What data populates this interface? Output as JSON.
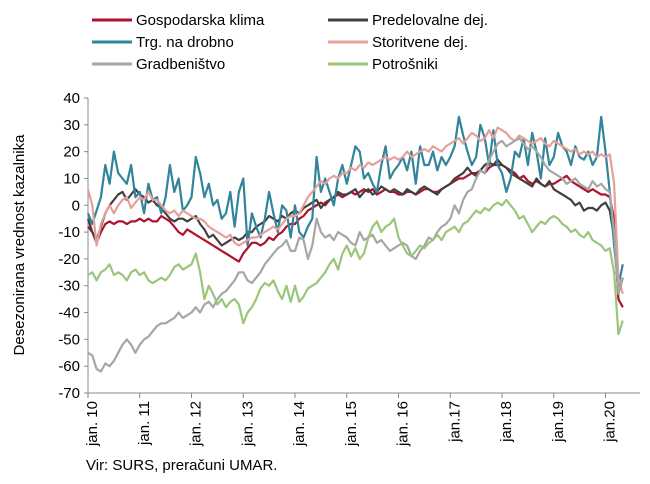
{
  "chart_data": {
    "type": "line",
    "y_label": "Desezonirana vrednost kazalnika",
    "source": "Vir: SURS, preračuni UMAR.",
    "categories": [
      "jan. 10",
      null,
      null,
      null,
      null,
      null,
      null,
      null,
      null,
      null,
      null,
      null,
      "jan. 11",
      null,
      null,
      null,
      null,
      null,
      null,
      null,
      null,
      null,
      null,
      null,
      "jan. 12",
      null,
      null,
      null,
      null,
      null,
      null,
      null,
      null,
      null,
      null,
      null,
      "jan. 13",
      null,
      null,
      null,
      null,
      null,
      null,
      null,
      null,
      null,
      null,
      null,
      "jan. 14",
      null,
      null,
      null,
      null,
      null,
      null,
      null,
      null,
      null,
      null,
      null,
      "jan. 15",
      null,
      null,
      null,
      null,
      null,
      null,
      null,
      null,
      null,
      null,
      null,
      "jan. 16",
      null,
      null,
      null,
      null,
      null,
      null,
      null,
      null,
      null,
      null,
      null,
      "jan.17",
      null,
      null,
      null,
      null,
      null,
      null,
      null,
      null,
      null,
      null,
      null,
      "jan.18",
      null,
      null,
      null,
      null,
      null,
      null,
      null,
      null,
      null,
      null,
      null,
      "jan.19",
      null,
      null,
      null,
      null,
      null,
      null,
      null,
      null,
      null,
      null,
      null,
      "jan.20",
      null,
      null,
      null,
      null
    ],
    "ylim": [
      -70,
      40
    ],
    "yticks": [
      -70,
      -60,
      -50,
      -40,
      -30,
      -20,
      -10,
      0,
      10,
      20,
      30,
      40
    ],
    "series": [
      {
        "name": "Gospodarska klima",
        "color": "#b0112b",
        "values": [
          -8,
          -10,
          -14,
          -10,
          -7,
          -6,
          -7,
          -6,
          -6,
          -7,
          -6,
          -6,
          -5,
          -6,
          -5,
          -6,
          -6,
          -4,
          -5,
          -6,
          -8,
          -10,
          -11,
          -9,
          -10,
          -11,
          -12,
          -13,
          -14,
          -15,
          -16,
          -17,
          -18,
          -19,
          -20,
          -21,
          -18,
          -16,
          -14,
          -14,
          -15,
          -14,
          -12,
          -13,
          -11,
          -10,
          -8,
          -7,
          -7,
          -5,
          -4,
          -2,
          -1,
          0,
          1,
          0,
          2,
          3,
          4,
          3,
          4,
          5,
          4,
          5,
          6,
          5,
          6,
          4,
          5,
          6,
          5,
          5,
          4,
          4,
          5,
          5,
          4,
          5,
          6,
          6,
          5,
          5,
          6,
          7,
          8,
          9,
          10,
          10,
          11,
          12,
          12,
          13,
          12,
          14,
          15,
          15,
          15,
          14,
          13,
          12,
          10,
          11,
          9,
          8,
          9,
          8,
          7,
          8,
          8,
          9,
          10,
          11,
          9,
          8,
          7,
          6,
          5,
          6,
          5,
          4,
          4,
          3,
          -5,
          -35,
          -38
        ]
      },
      {
        "name": "Predelovalne dej.",
        "color": "#404040",
        "values": [
          -5,
          -10,
          -13,
          -8,
          -3,
          0,
          2,
          4,
          5,
          2,
          4,
          6,
          4,
          3,
          1,
          2,
          0,
          -1,
          -3,
          -5,
          -6,
          -5,
          -5,
          -6,
          -5,
          -4,
          -7,
          -9,
          -12,
          -11,
          -13,
          -15,
          -14,
          -13,
          -12,
          -13,
          -12,
          -10,
          -10,
          -8,
          -7,
          -6,
          -4,
          -5,
          -6,
          -4,
          -5,
          -3,
          -2,
          -3,
          -1,
          0,
          1,
          2,
          -1,
          1,
          2,
          3,
          5,
          4,
          4,
          5,
          6,
          3,
          5,
          6,
          4,
          5,
          7,
          6,
          5,
          6,
          5,
          4,
          6,
          5,
          4,
          6,
          7,
          6,
          5,
          4,
          6,
          7,
          8,
          10,
          11,
          12,
          14,
          12,
          11,
          13,
          15,
          16,
          15,
          17,
          15,
          14,
          12,
          11,
          10,
          9,
          8,
          7,
          10,
          8,
          7,
          9,
          6,
          5,
          4,
          3,
          2,
          0,
          1,
          -2,
          -1,
          -1,
          -2,
          0,
          1,
          -2,
          -12,
          -33,
          -27
        ]
      },
      {
        "name": "Trg. na drobno",
        "color": "#31849b",
        "values": [
          -3,
          -7,
          -2,
          3,
          15,
          8,
          20,
          12,
          10,
          8,
          15,
          3,
          5,
          -3,
          8,
          2,
          3,
          -3,
          3,
          15,
          5,
          10,
          -2,
          0,
          3,
          18,
          12,
          3,
          8,
          0,
          2,
          -5,
          -3,
          5,
          -8,
          5,
          10,
          -15,
          -3,
          -8,
          -12,
          -5,
          5,
          -3,
          -10,
          0,
          -2,
          -12,
          0,
          -10,
          -12,
          -8,
          -5,
          18,
          5,
          10,
          5,
          0,
          10,
          15,
          8,
          15,
          22,
          20,
          10,
          12,
          8,
          5,
          15,
          22,
          10,
          13,
          15,
          18,
          13,
          20,
          8,
          22,
          15,
          15,
          20,
          13,
          18,
          15,
          18,
          22,
          33,
          26,
          20,
          15,
          18,
          30,
          25,
          15,
          28,
          15,
          12,
          5,
          10,
          20,
          18,
          25,
          15,
          27,
          20,
          10,
          25,
          15,
          18,
          27,
          22,
          20,
          15,
          22,
          18,
          17,
          20,
          15,
          18,
          33,
          20,
          5,
          -15,
          -30,
          -22
        ]
      },
      {
        "name": "Storitvene dej.",
        "color": "#e6a09a",
        "values": [
          6,
          0,
          -15,
          -7,
          -3,
          0,
          -3,
          0,
          2,
          3,
          -1,
          1,
          3,
          2,
          5,
          2,
          2,
          0,
          -2,
          -3,
          -2,
          -4,
          -2,
          -3,
          -4,
          -5,
          -5,
          -6,
          -8,
          -9,
          -10,
          -11,
          -12,
          -11,
          -14,
          -15,
          -14,
          -13,
          -12,
          -12,
          -11,
          -10,
          -9,
          -8,
          -9,
          -7,
          -5,
          -4,
          -4,
          -3,
          0,
          3,
          5,
          7,
          9,
          8,
          10,
          11,
          10,
          12,
          12,
          14,
          13,
          15,
          14,
          16,
          15,
          16,
          17,
          18,
          17,
          18,
          17,
          18,
          20,
          18,
          19,
          20,
          21,
          20,
          22,
          21,
          20,
          22,
          23,
          24,
          25,
          23,
          25,
          27,
          26,
          24,
          25,
          28,
          25,
          29,
          28,
          27,
          25,
          24,
          26,
          25,
          24,
          23,
          24,
          25,
          23,
          22,
          24,
          23,
          22,
          21,
          20,
          21,
          19,
          20,
          19,
          20,
          18,
          19,
          18,
          19,
          8,
          -27,
          -33
        ]
      },
      {
        "name": "Gradbeništvo",
        "color": "#a6a6a6",
        "values": [
          -55,
          -56,
          -61,
          -62,
          -59,
          -60,
          -58,
          -55,
          -52,
          -50,
          -52,
          -55,
          -52,
          -50,
          -49,
          -47,
          -45,
          -44,
          -44,
          -43,
          -42,
          -40,
          -42,
          -41,
          -40,
          -38,
          -40,
          -37,
          -36,
          -38,
          -35,
          -33,
          -32,
          -30,
          -28,
          -25,
          -25,
          -28,
          -29,
          -27,
          -25,
          -22,
          -20,
          -18,
          -16,
          -15,
          -13,
          -17,
          -17,
          -12,
          -13,
          -20,
          -15,
          -5,
          -10,
          -12,
          -11,
          -13,
          -10,
          -11,
          -12,
          -14,
          -15,
          -10,
          -13,
          -12,
          -11,
          -14,
          -13,
          -15,
          -17,
          -16,
          -15,
          -14,
          -15,
          -19,
          -20,
          -17,
          -15,
          -12,
          -13,
          -10,
          -8,
          -7,
          -5,
          0,
          -3,
          2,
          5,
          6,
          10,
          13,
          12,
          17,
          20,
          23,
          24,
          22,
          23,
          24,
          25,
          23,
          21,
          22,
          20,
          18,
          15,
          13,
          12,
          11,
          10,
          8,
          9,
          10,
          8,
          7,
          6,
          9,
          7,
          8,
          6,
          5,
          -10,
          -33,
          -27
        ]
      },
      {
        "name": "Potrošniki",
        "color": "#9bc57a",
        "values": [
          -26,
          -25,
          -28,
          -25,
          -24,
          -22,
          -26,
          -25,
          -26,
          -28,
          -25,
          -24,
          -26,
          -25,
          -28,
          -29,
          -28,
          -27,
          -28,
          -26,
          -23,
          -22,
          -24,
          -23,
          -22,
          -18,
          -25,
          -35,
          -30,
          -33,
          -37,
          -35,
          -38,
          -36,
          -35,
          -37,
          -44,
          -40,
          -38,
          -35,
          -31,
          -29,
          -30,
          -28,
          -32,
          -35,
          -30,
          -36,
          -30,
          -36,
          -34,
          -31,
          -30,
          -29,
          -27,
          -25,
          -22,
          -20,
          -24,
          -18,
          -15,
          -19,
          -16,
          -20,
          -18,
          -12,
          -8,
          -6,
          -10,
          -8,
          -7,
          -5,
          -12,
          -15,
          -18,
          -19,
          -17,
          -15,
          -16,
          -14,
          -13,
          -11,
          -13,
          -10,
          -9,
          -8,
          -10,
          -7,
          -6,
          -4,
          -2,
          -3,
          -1,
          -2,
          0,
          1,
          0,
          2,
          0,
          -2,
          -5,
          -4,
          -7,
          -10,
          -8,
          -6,
          -7,
          -5,
          -4,
          -5,
          -7,
          -8,
          -10,
          -9,
          -11,
          -12,
          -10,
          -13,
          -14,
          -15,
          -17,
          -16,
          -25,
          -48,
          -43
        ]
      }
    ]
  }
}
